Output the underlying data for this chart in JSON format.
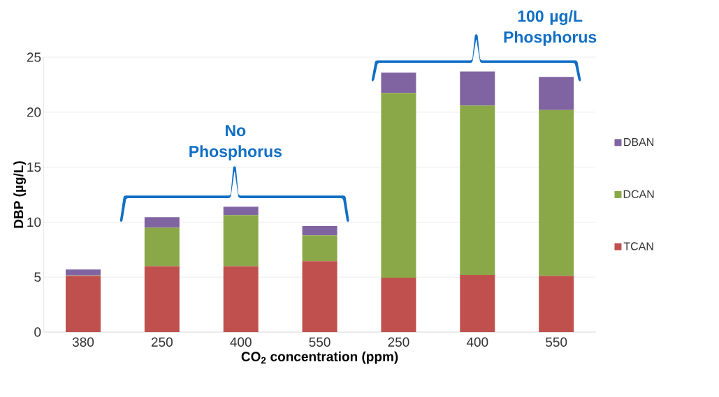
{
  "chart_data": {
    "type": "bar",
    "stacked": true,
    "categories": [
      "380",
      "250",
      "400",
      "550",
      "250",
      "400",
      "550"
    ],
    "series": [
      {
        "name": "TCAN",
        "color": "#c0504d",
        "values": [
          5.1,
          6.0,
          6.0,
          6.45,
          4.95,
          5.2,
          5.1
        ]
      },
      {
        "name": "DCAN",
        "color": "#8aa847",
        "values": [
          0.05,
          3.5,
          4.65,
          2.35,
          16.8,
          15.4,
          15.1
        ]
      },
      {
        "name": "DBAN",
        "color": "#8064a2",
        "values": [
          0.55,
          0.95,
          0.75,
          0.85,
          1.85,
          3.1,
          3.0
        ]
      }
    ],
    "ylim": [
      0,
      25
    ],
    "yticks": [
      0,
      5,
      10,
      15,
      20,
      25
    ],
    "grid": "y",
    "legend": "right",
    "xlabel": "CO$_{2}$ concentration (ppm)",
    "ylabel": "DBP (µg/L)",
    "annotations": [
      "No Phosphorus",
      "100 µg/L Phosphorus"
    ]
  }
}
